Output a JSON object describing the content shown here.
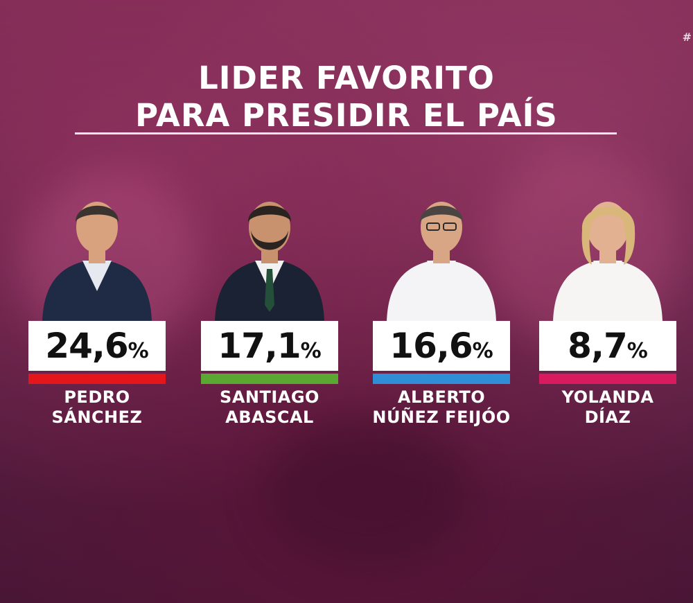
{
  "corner_mark": "#",
  "title_line1": "LIDER FAVORITO",
  "title_line2": "PARA PRESIDIR EL PAÍS",
  "chart_data": {
    "type": "bar",
    "title": "LIDER FAVORITO PARA PRESIDIR EL PAÍS",
    "unit": "%",
    "categories": [
      "PEDRO SÁNCHEZ",
      "SANTIAGO ABASCAL",
      "ALBERTO NÚÑEZ FEIJÓO",
      "YOLANDA DÍAZ"
    ],
    "values": [
      24.6,
      17.1,
      16.6,
      8.7
    ],
    "value_labels": [
      "24,6",
      "17,1",
      "16,6",
      "8,7"
    ],
    "candidates": [
      {
        "name_line1": "PEDRO",
        "name_line2": "SÁNCHEZ",
        "value_label": "24,6",
        "color": "#e3161b",
        "suit": "#1f2a44",
        "shirt": "#e6e9ef",
        "hair": "#3a3330",
        "skin": "#d7a27d"
      },
      {
        "name_line1": "SANTIAGO",
        "name_line2": "ABASCAL",
        "value_label": "17,1",
        "color": "#5aa832",
        "suit": "#1b2233",
        "shirt": "#f2f2f2",
        "hair": "#2a2320",
        "skin": "#c9926f"
      },
      {
        "name_line1": "ALBERTO",
        "name_line2": "NÚÑEZ FEIJÓO",
        "value_label": "16,6",
        "color": "#2f8ed6",
        "suit": "#f4f4f6",
        "shirt": "#f4f4f6",
        "hair": "#4a4542",
        "skin": "#d8a684"
      },
      {
        "name_line1": "YOLANDA",
        "name_line2": "DÍAZ",
        "value_label": "8,7",
        "color": "#d81b5e",
        "suit": "#f7f5f3",
        "shirt": "#f7f5f3",
        "hair": "#d9b77a",
        "skin": "#e1b192"
      }
    ]
  }
}
